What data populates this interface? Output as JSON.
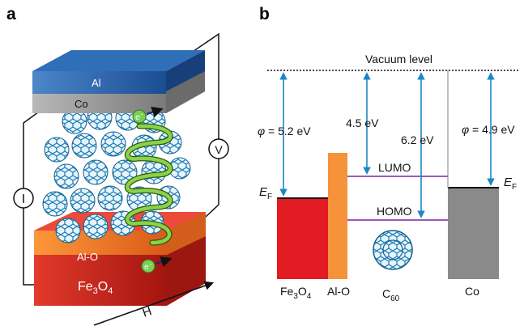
{
  "panels": {
    "a": "a",
    "b": "b"
  },
  "device": {
    "layers": {
      "top": "Al",
      "electrode_top": "Co",
      "barrier": "Al-O",
      "bottom_main": "Fe",
      "bottom_sub": "3",
      "bottom_tail": "O",
      "bottom_sub2": "4"
    },
    "electron": "e",
    "electron_sign": "−",
    "current_meter": "I",
    "voltage_meter": "V",
    "field": "H"
  },
  "energy": {
    "vacuum_label": "Vacuum level",
    "phi_symbol": "φ",
    "phi_left": " = 5.2 eV",
    "phi_right": " = 4.9 eV",
    "gap1": "4.5 eV",
    "gap2": "6.2 eV",
    "lumo": "LUMO",
    "homo": "HOMO",
    "ef_main": "E",
    "ef_sub": "F",
    "materials": {
      "fe_main": "Fe",
      "fe_sub1": "3",
      "fe_o": "O",
      "fe_sub2": "4",
      "alo": "Al-O",
      "c_main": "C",
      "c_sub": "60",
      "co": "Co"
    },
    "colors": {
      "fe3o4": "#e31b23",
      "alo": "#f6923a",
      "co": "#8a8a8a",
      "orbital": "#9b59b6",
      "arrow": "#1b87c7"
    }
  }
}
